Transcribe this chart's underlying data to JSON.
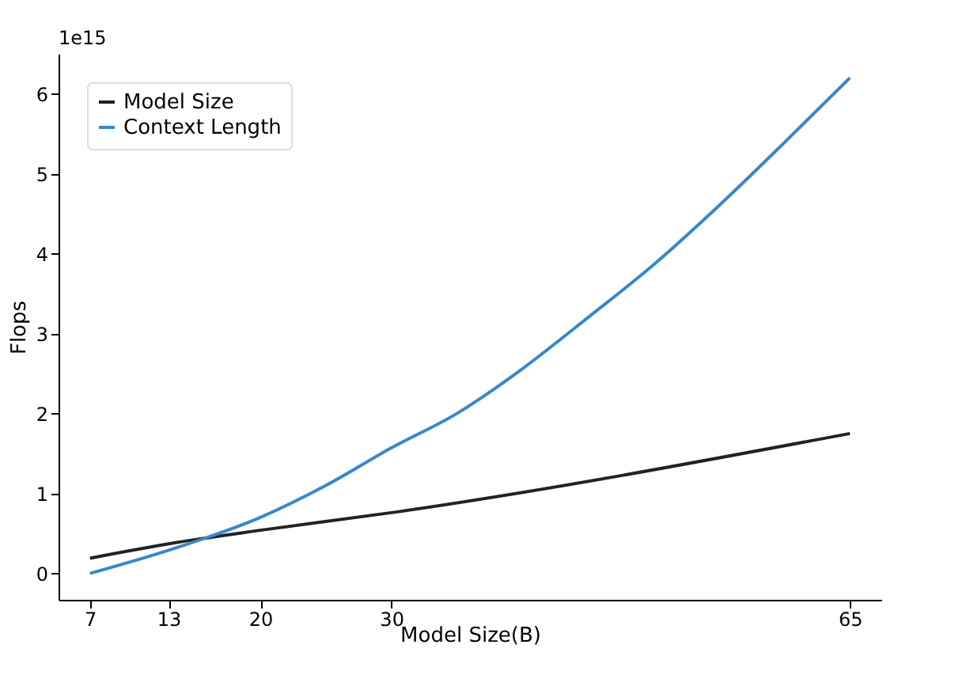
{
  "chart_data": {
    "type": "line",
    "xlabel": "Model Size(B)",
    "ylabel": "Flops",
    "annotations": [
      "1e15"
    ],
    "xlim": [
      4.6,
      67.4
    ],
    "xticks": [
      7,
      13,
      20,
      30,
      65
    ],
    "ylim": [
      -0.33,
      6.5
    ],
    "yticks": [
      0,
      1,
      2,
      3,
      4,
      5,
      6
    ],
    "legend": "top left",
    "grid": false,
    "line_style": "solid",
    "marker": "none",
    "series": [
      {
        "name": "Model Size",
        "color": "#222222",
        "x": [
          7,
          13,
          20,
          30,
          65
        ],
        "values": [
          0.19,
          0.37,
          0.54,
          0.76,
          1.75
        ]
      },
      {
        "name": "Context Length",
        "color": "#3a87c8",
        "x": [
          7,
          13,
          20,
          25,
          30,
          35,
          40,
          45,
          50,
          55,
          60,
          65
        ],
        "values": [
          0,
          0.29,
          0.7,
          1.1,
          1.57,
          2.0,
          2.56,
          3.2,
          3.86,
          4.6,
          5.39,
          6.2
        ]
      }
    ]
  }
}
